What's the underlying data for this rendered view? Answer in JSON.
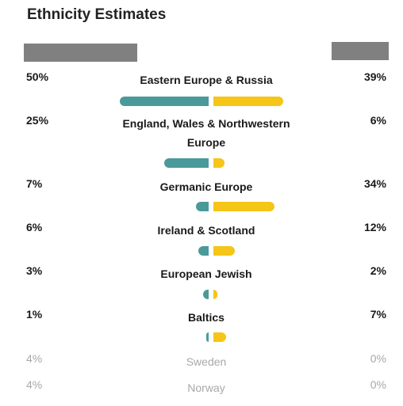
{
  "title": "Ethnicity Estimates",
  "colors": {
    "left_bar": "#4b9a9a",
    "right_bar": "#f5c518",
    "placeholder": "#808080"
  },
  "rows": [
    {
      "label": "Eastern Europe & Russia",
      "left": "50%",
      "right": "39%",
      "left_value": 50,
      "right_value": 39
    },
    {
      "label": "England, Wales & Northwestern Europe",
      "left": "25%",
      "right": "6%",
      "left_value": 25,
      "right_value": 6
    },
    {
      "label": "Germanic Europe",
      "left": "7%",
      "right": "34%",
      "left_value": 7,
      "right_value": 34
    },
    {
      "label": "Ireland & Scotland",
      "left": "6%",
      "right": "12%",
      "left_value": 6,
      "right_value": 12
    },
    {
      "label": "European Jewish",
      "left": "3%",
      "right": "2%",
      "left_value": 3,
      "right_value": 2
    },
    {
      "label": "Baltics",
      "left": "1%",
      "right": "7%",
      "left_value": 1,
      "right_value": 7
    }
  ],
  "faded_rows": [
    {
      "label": "Sweden",
      "left": "4%",
      "right": "0%"
    },
    {
      "label": "Norway",
      "left": "4%",
      "right": "0%"
    }
  ]
}
